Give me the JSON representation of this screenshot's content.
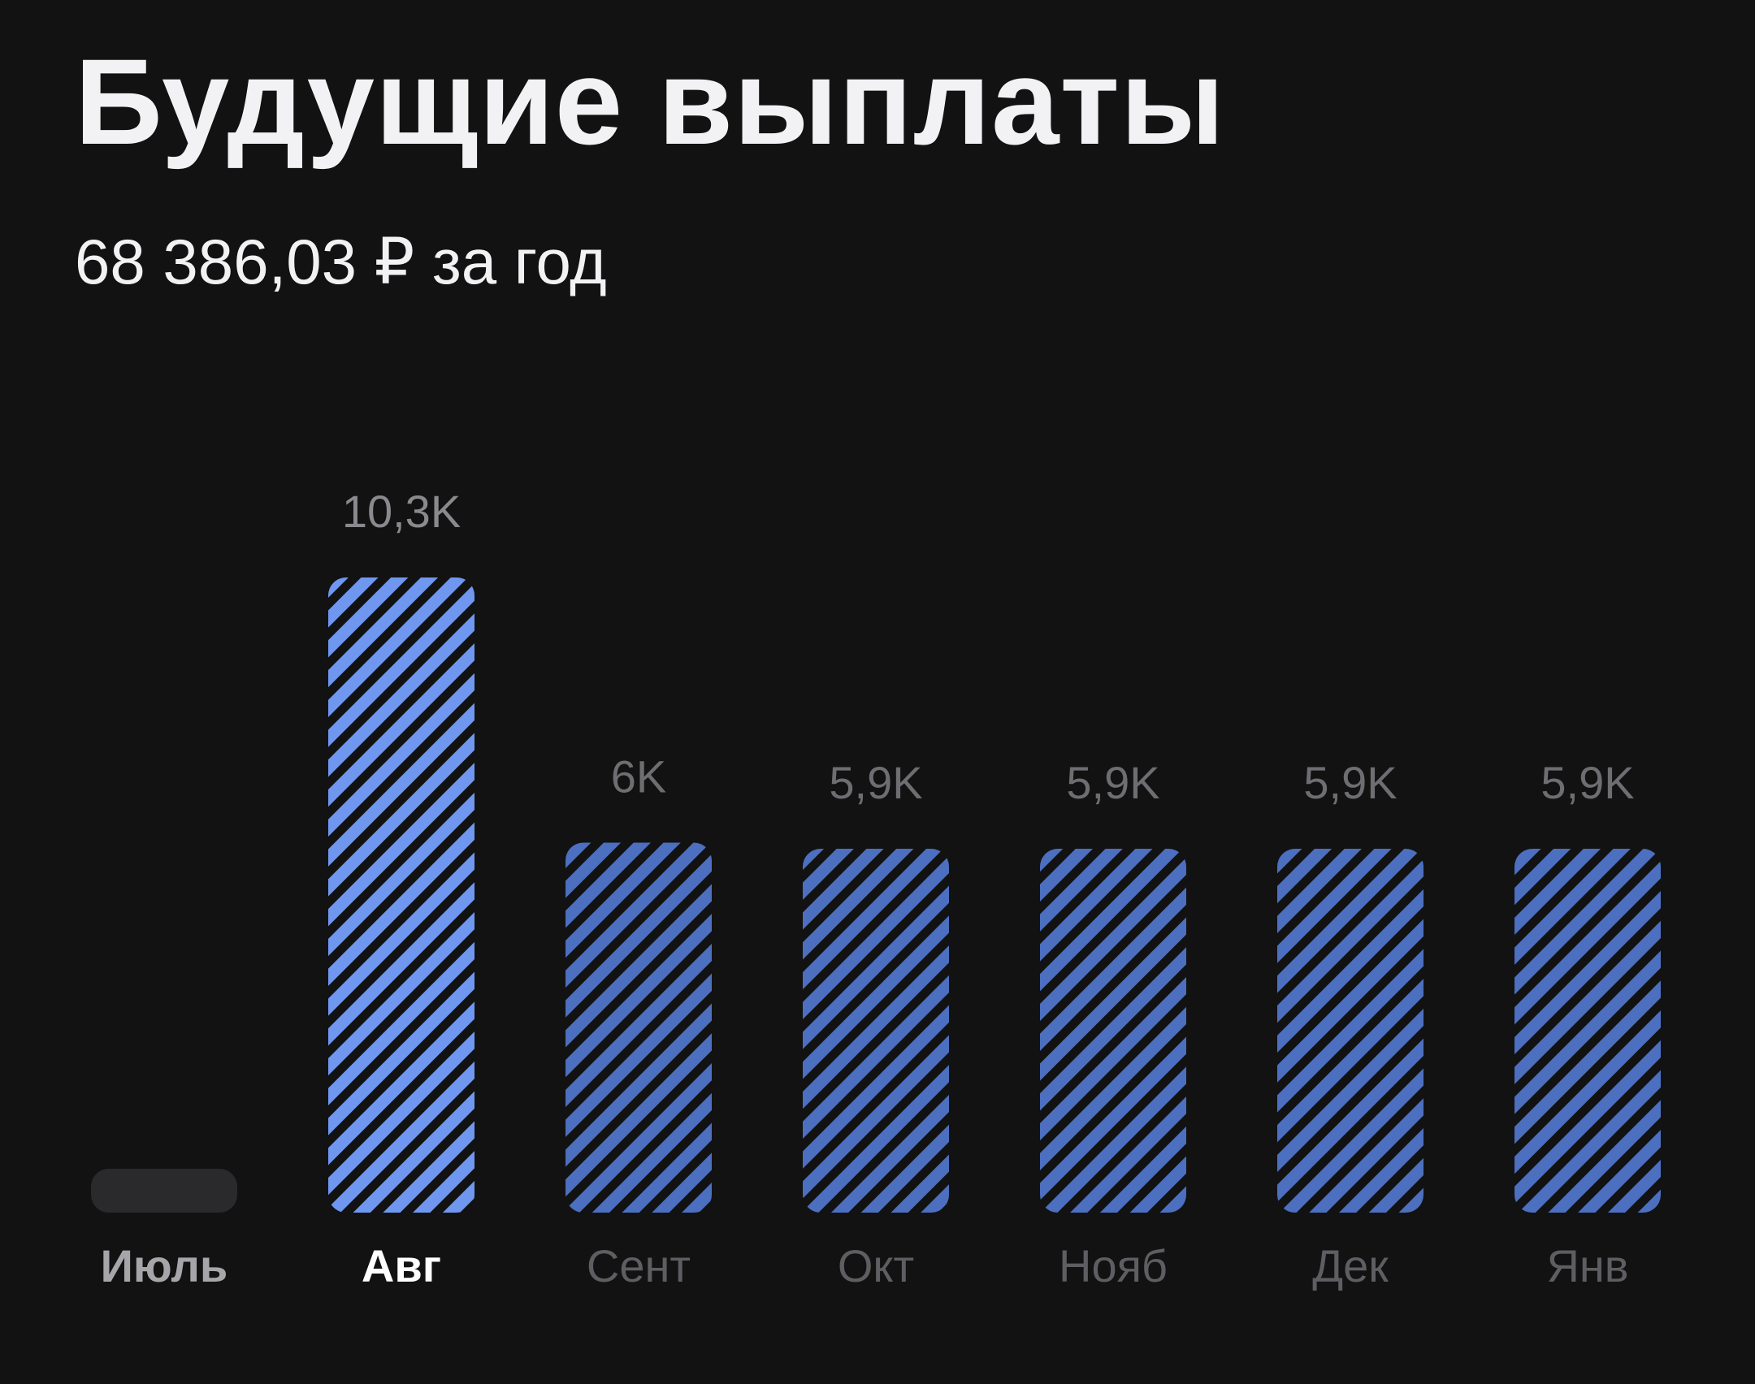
{
  "header": {
    "title": "Будущие выплаты",
    "subtitle": "68 386,03 ₽ за год"
  },
  "chart_data": {
    "type": "bar",
    "categories": [
      "Июль",
      "Авг",
      "Сент",
      "Окт",
      "Нояб",
      "Дек",
      "Янв"
    ],
    "values": [
      0,
      10.3,
      6,
      5.9,
      5.9,
      5.9,
      5.9
    ],
    "value_labels": [
      "",
      "10,3K",
      "6K",
      "5,9K",
      "5,9K",
      "5,9K",
      "5,9K"
    ],
    "selected_index": 1,
    "current_index": 0,
    "title": "",
    "xlabel": "",
    "ylabel": "",
    "ylim": [
      0,
      10.3
    ],
    "grid": false,
    "legend": "none",
    "colors": {
      "background": "#121212",
      "bar_selected": "#6f97f0",
      "bar_default": "#4c6fbf",
      "stripe": "#121212",
      "empty_bar": "#2a2a2c",
      "value_label": "#8a8a8e",
      "value_label_dim": "#6e6e72",
      "month_current": "#a6a6aa",
      "month_selected": "#ffffff",
      "month_default": "#5e5e62"
    }
  }
}
